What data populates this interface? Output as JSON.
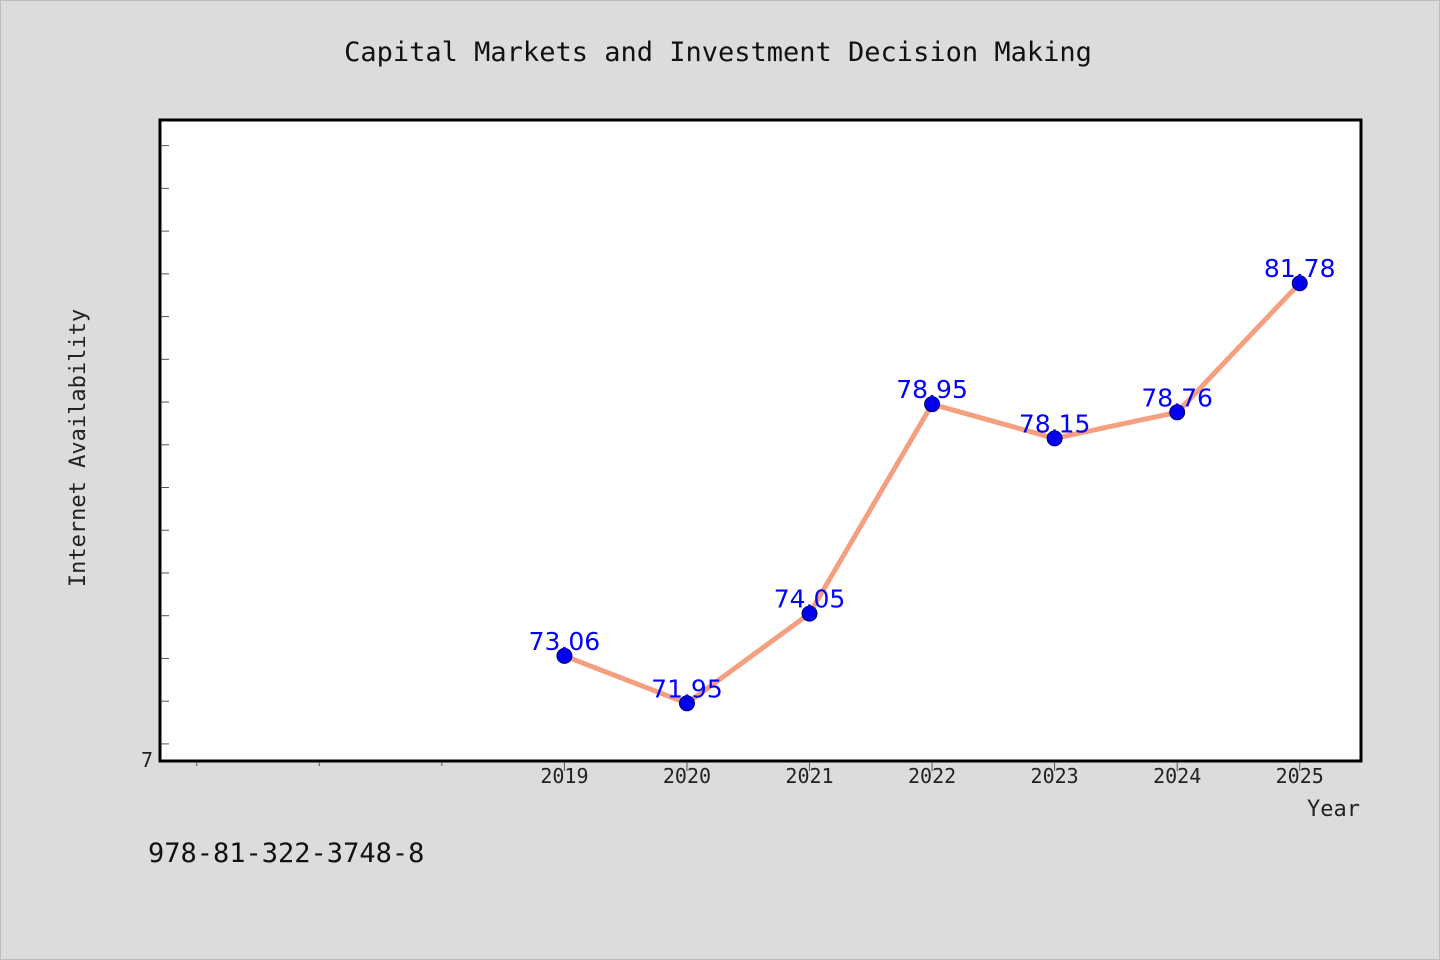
{
  "footer_text": "978-81-322-3748-8",
  "colors": {
    "background": "#dcdcdc",
    "plot_background": "#ffffff",
    "line": "#f4a080",
    "marker": "#0000ee",
    "data_label": "#0000ff"
  },
  "chart_data": {
    "type": "line",
    "title": "Capital Markets and Investment Decision Making",
    "xlabel": "Year",
    "ylabel": "Internet Availability",
    "x": [
      2019,
      2020,
      2021,
      2022,
      2023,
      2024,
      2025
    ],
    "x_tick_labels": [
      "2019",
      "2020",
      "2021",
      "2022",
      "2023",
      "2024",
      "2025"
    ],
    "xlim": [
      2015.7,
      2025.5
    ],
    "ylim": [
      70.6,
      85.6
    ],
    "y_tick_labels": [
      "7"
    ],
    "series": [
      {
        "values": [
          73.06,
          71.95,
          74.05,
          78.95,
          78.15,
          78.76,
          81.78
        ],
        "labels": [
          "73.06",
          "71.95",
          "74.05",
          "78.95",
          "78.15",
          "78.76",
          "81.78"
        ]
      }
    ],
    "grid": false,
    "legend": "none"
  }
}
